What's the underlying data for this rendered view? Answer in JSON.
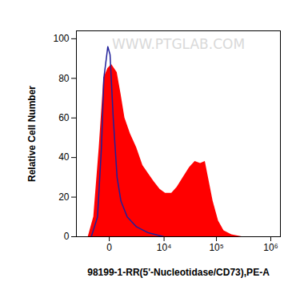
{
  "chart_data": {
    "type": "histogram_overlay",
    "watermark": "WWW.PTGLAB.COM",
    "xlabel": "98199-1-RR(5'-Nucleotidase/CD73),PE-A",
    "ylabel": "Relative Cell Number",
    "log": "x",
    "xlim": [
      -3300,
      1500000
    ],
    "xticks": [
      0,
      {
        "value": 10000,
        "label": "10⁴"
      },
      {
        "value": 100000,
        "label": "10⁵"
      },
      {
        "value": 1000000,
        "label": "10⁶"
      }
    ],
    "ylim": [
      0,
      104
    ],
    "yticks": [
      0,
      20,
      40,
      60,
      80,
      100
    ],
    "series": [
      {
        "type": "area",
        "color": "#ff0000",
        "x": [
          -1575,
          -1020,
          -585,
          -285,
          -70,
          115,
          430,
          700,
          1020,
          1575,
          2380,
          3420,
          4600,
          6070,
          8230,
          10670,
          14200,
          18100,
          23900,
          31400,
          39900,
          50500,
          61800,
          70600,
          86300,
          108900,
          137500,
          191000,
          295000
        ],
        "values": [
          0,
          10,
          45,
          80,
          85,
          87,
          83,
          72,
          60,
          52,
          45,
          36,
          32,
          28,
          24,
          22,
          22,
          25,
          30,
          35,
          38,
          37,
          38,
          30,
          18,
          8,
          3,
          1,
          0
        ]
      },
      {
        "type": "line",
        "color": "#1f1f9a",
        "x": [
          -1245,
          -705,
          -430,
          -285,
          -70,
          37,
          200,
          430,
          700,
          1245,
          2380,
          4600,
          9900
        ],
        "values": [
          0,
          10,
          45,
          80,
          96,
          92,
          60,
          30,
          18,
          10,
          5,
          2,
          0
        ]
      }
    ]
  }
}
